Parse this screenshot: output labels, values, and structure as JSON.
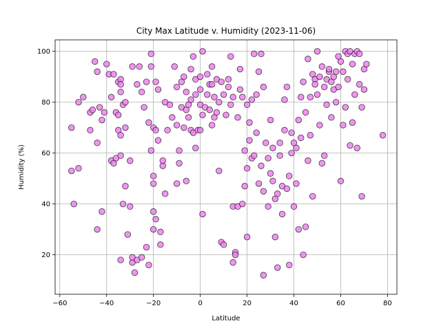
{
  "chart_data": {
    "type": "scatter",
    "title": "City Max Latitude v. Humidity (2023-11-06)",
    "xlabel": "Latitude",
    "ylabel": "Humidity (%)",
    "xlim": [
      -62,
      84
    ],
    "ylim": [
      4.5,
      104.5
    ],
    "xticks": [
      -60,
      -40,
      -20,
      0,
      20,
      40,
      60,
      80
    ],
    "yticks": [
      20,
      40,
      60,
      80,
      100
    ],
    "grid": true,
    "marker_color": "#ee82ee",
    "edge_color": "#000000",
    "points": [
      [
        -55,
        70
      ],
      [
        -55,
        53
      ],
      [
        -54,
        40
      ],
      [
        -52,
        54
      ],
      [
        -52,
        80
      ],
      [
        -50,
        82
      ],
      [
        -47,
        69
      ],
      [
        -47,
        76
      ],
      [
        -46,
        77
      ],
      [
        -45,
        96
      ],
      [
        -44,
        64
      ],
      [
        -44,
        30
      ],
      [
        -44,
        92
      ],
      [
        -43,
        78
      ],
      [
        -42,
        37
      ],
      [
        -42,
        73
      ],
      [
        -41,
        76
      ],
      [
        -40,
        95
      ],
      [
        -39,
        91
      ],
      [
        -38,
        57
      ],
      [
        -38,
        82
      ],
      [
        -37,
        56
      ],
      [
        -37,
        91
      ],
      [
        -36,
        76
      ],
      [
        -36,
        58
      ],
      [
        -35,
        69
      ],
      [
        -35,
        88
      ],
      [
        -35,
        75
      ],
      [
        -34,
        89
      ],
      [
        -34,
        87
      ],
      [
        -34,
        84
      ],
      [
        -34,
        67
      ],
      [
        -34,
        59
      ],
      [
        -34,
        18
      ],
      [
        -33,
        40
      ],
      [
        -33,
        79
      ],
      [
        -32,
        47
      ],
      [
        -32,
        80
      ],
      [
        -32,
        70
      ],
      [
        -31,
        28
      ],
      [
        -30,
        39
      ],
      [
        -30,
        57
      ],
      [
        -29,
        17
      ],
      [
        -29,
        19
      ],
      [
        -29,
        94
      ],
      [
        -28,
        13
      ],
      [
        -27,
        87
      ],
      [
        -27,
        18
      ],
      [
        -26,
        94
      ],
      [
        -25,
        19
      ],
      [
        -25,
        84
      ],
      [
        -24,
        78
      ],
      [
        -23,
        88
      ],
      [
        -23,
        23
      ],
      [
        -22,
        72
      ],
      [
        -22,
        16
      ],
      [
        -21,
        94
      ],
      [
        -21,
        61
      ],
      [
        -21,
        99
      ],
      [
        -20,
        70
      ],
      [
        -20,
        51
      ],
      [
        -20,
        48
      ],
      [
        -20,
        37
      ],
      [
        -20,
        30
      ],
      [
        -19,
        69
      ],
      [
        -19,
        34
      ],
      [
        -19,
        88
      ],
      [
        -18,
        85
      ],
      [
        -18,
        65
      ],
      [
        -17,
        29
      ],
      [
        -17,
        24
      ],
      [
        -16,
        55
      ],
      [
        -16,
        57
      ],
      [
        -15,
        80
      ],
      [
        -15,
        44
      ],
      [
        -14,
        69
      ],
      [
        -13,
        79
      ],
      [
        -12,
        74
      ],
      [
        -11,
        94
      ],
      [
        -10,
        86
      ],
      [
        -10,
        71
      ],
      [
        -10,
        48
      ],
      [
        -9,
        56
      ],
      [
        -9,
        61
      ],
      [
        -8,
        78
      ],
      [
        -8,
        88
      ],
      [
        -7,
        70
      ],
      [
        -7,
        90
      ],
      [
        -6,
        77
      ],
      [
        -6,
        84
      ],
      [
        -6,
        49
      ],
      [
        -5,
        79
      ],
      [
        -5,
        74
      ],
      [
        -4,
        93
      ],
      [
        -4,
        81
      ],
      [
        -4,
        69
      ],
      [
        -3,
        68
      ],
      [
        -3,
        98
      ],
      [
        -2,
        89
      ],
      [
        -2,
        83
      ],
      [
        -2,
        62
      ],
      [
        -1,
        69
      ],
      [
        0,
        90
      ],
      [
        0,
        85
      ],
      [
        0,
        69
      ],
      [
        0,
        79
      ],
      [
        1,
        100
      ],
      [
        1,
        75
      ],
      [
        1,
        36
      ],
      [
        2,
        78
      ],
      [
        3,
        91
      ],
      [
        3,
        83
      ],
      [
        4,
        77
      ],
      [
        4,
        87
      ],
      [
        5,
        94
      ],
      [
        5,
        71
      ],
      [
        5,
        87
      ],
      [
        6,
        82
      ],
      [
        6,
        74
      ],
      [
        7,
        89
      ],
      [
        7,
        76
      ],
      [
        8,
        53
      ],
      [
        8,
        80
      ],
      [
        9,
        88
      ],
      [
        9,
        25
      ],
      [
        10,
        24
      ],
      [
        10,
        83
      ],
      [
        11,
        75
      ],
      [
        12,
        86
      ],
      [
        12,
        89
      ],
      [
        13,
        98
      ],
      [
        13,
        79
      ],
      [
        14,
        82
      ],
      [
        14,
        39
      ],
      [
        14,
        17
      ],
      [
        15,
        21
      ],
      [
        15,
        20
      ],
      [
        16,
        39
      ],
      [
        16,
        74
      ],
      [
        17,
        93
      ],
      [
        17,
        85
      ],
      [
        18,
        82
      ],
      [
        18,
        40
      ],
      [
        19,
        47
      ],
      [
        19,
        61
      ],
      [
        20,
        79
      ],
      [
        20,
        27
      ],
      [
        20,
        54
      ],
      [
        21,
        72
      ],
      [
        21,
        65
      ],
      [
        22,
        58
      ],
      [
        22,
        81
      ],
      [
        23,
        59
      ],
      [
        23,
        99
      ],
      [
        24,
        83
      ],
      [
        24,
        68
      ],
      [
        25,
        92
      ],
      [
        25,
        48
      ],
      [
        26,
        99
      ],
      [
        26,
        55
      ],
      [
        27,
        86
      ],
      [
        27,
        45
      ],
      [
        27,
        12
      ],
      [
        28,
        64
      ],
      [
        29,
        58
      ],
      [
        29,
        39
      ],
      [
        30,
        52
      ],
      [
        30,
        73
      ],
      [
        31,
        62
      ],
      [
        31,
        49
      ],
      [
        32,
        27
      ],
      [
        32,
        42
      ],
      [
        33,
        15
      ],
      [
        33,
        44
      ],
      [
        34,
        59
      ],
      [
        34,
        64
      ],
      [
        35,
        36
      ],
      [
        35,
        47
      ],
      [
        36,
        69
      ],
      [
        36,
        81
      ],
      [
        37,
        86
      ],
      [
        37,
        46
      ],
      [
        38,
        16
      ],
      [
        38,
        51
      ],
      [
        39,
        68
      ],
      [
        39,
        60
      ],
      [
        40,
        64
      ],
      [
        40,
        39
      ],
      [
        41,
        62
      ],
      [
        41,
        48
      ],
      [
        42,
        30
      ],
      [
        42,
        73
      ],
      [
        43,
        82
      ],
      [
        43,
        66
      ],
      [
        44,
        20
      ],
      [
        44,
        88
      ],
      [
        45,
        31
      ],
      [
        45,
        76
      ],
      [
        46,
        97
      ],
      [
        46,
        57
      ],
      [
        47,
        82
      ],
      [
        47,
        67
      ],
      [
        48,
        43
      ],
      [
        48,
        91
      ],
      [
        49,
        89
      ],
      [
        49,
        87
      ],
      [
        50,
        83
      ],
      [
        50,
        100
      ],
      [
        51,
        71
      ],
      [
        51,
        90
      ],
      [
        52,
        94
      ],
      [
        52,
        56
      ],
      [
        53,
        86
      ],
      [
        53,
        59
      ],
      [
        54,
        89
      ],
      [
        54,
        79
      ],
      [
        55,
        92
      ],
      [
        55,
        93
      ],
      [
        56,
        88
      ],
      [
        56,
        74
      ],
      [
        57,
        90
      ],
      [
        57,
        85
      ],
      [
        58,
        92
      ],
      [
        58,
        80
      ],
      [
        59,
        98
      ],
      [
        59,
        86
      ],
      [
        60,
        96
      ],
      [
        60,
        49
      ],
      [
        61,
        92
      ],
      [
        61,
        71
      ],
      [
        62,
        100
      ],
      [
        62,
        78
      ],
      [
        63,
        89
      ],
      [
        63,
        99
      ],
      [
        64,
        100
      ],
      [
        64,
        63
      ],
      [
        65,
        95
      ],
      [
        65,
        72
      ],
      [
        66,
        99
      ],
      [
        66,
        83
      ],
      [
        67,
        100
      ],
      [
        67,
        62
      ],
      [
        68,
        99
      ],
      [
        68,
        87
      ],
      [
        69,
        43
      ],
      [
        69,
        78
      ],
      [
        70,
        93
      ],
      [
        70,
        85
      ],
      [
        71,
        95
      ],
      [
        78,
        67
      ]
    ]
  }
}
